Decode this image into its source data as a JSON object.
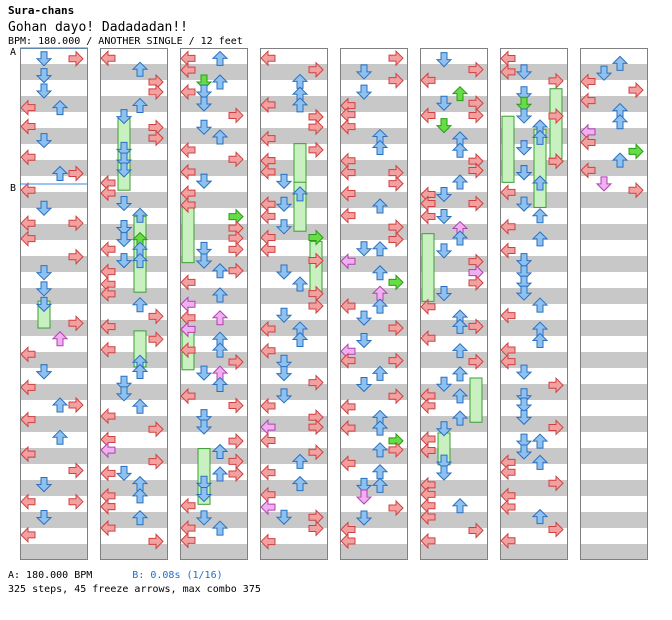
{
  "header": {
    "group": "Sura-chans",
    "title": "Gohan dayo! Dadadadan!!",
    "info": "BPM: 180.000 / ANOTHER SINGLE / 12 feet"
  },
  "markers": {
    "a": "A",
    "b": "B"
  },
  "footer": {
    "legend_a": "A: 180.000 BPM",
    "legend_b": "B: 0.08s (1/16)",
    "stats": "325 steps, 45 freeze arrows, max combo 375"
  },
  "colors": {
    "stripe": "#c8c8c8",
    "border": "#808080",
    "left_right": "#f2a0a0",
    "left_right_edge": "#d04040",
    "up_down": "#8fc1ef",
    "up_down_edge": "#2a70c0",
    "purple": "#f0b0f0",
    "purple_edge": "#b040b0",
    "green": "#66dd44",
    "green_edge": "#2a9a1a",
    "freeze_fill": "#c8f0c0",
    "freeze_edge": "#3aa030",
    "bpm_line": "#3a8ad8"
  },
  "icons": [
    "left-arrow-icon",
    "down-arrow-icon",
    "up-arrow-icon",
    "right-arrow-icon"
  ]
}
